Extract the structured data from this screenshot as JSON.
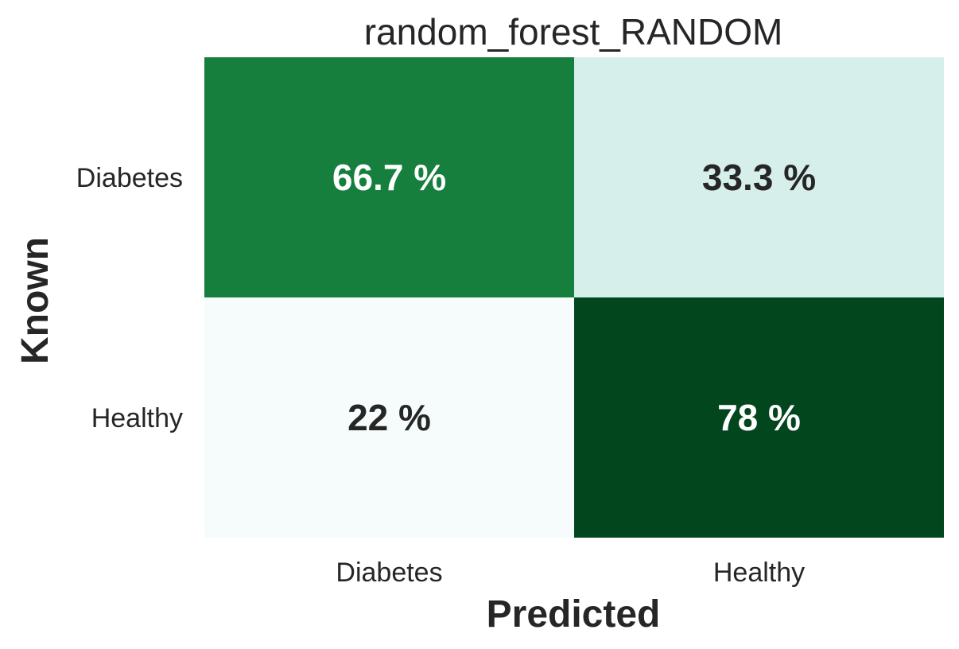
{
  "chart_data": {
    "type": "heatmap",
    "title": "random_forest_RANDOM",
    "xlabel": "Predicted",
    "ylabel": "Known",
    "x_categories": [
      "Diabetes",
      "Healthy"
    ],
    "y_categories": [
      "Diabetes",
      "Healthy"
    ],
    "values": [
      [
        66.7,
        33.3
      ],
      [
        22,
        78
      ]
    ],
    "cell_labels": [
      [
        "66.7 %",
        "33.3 %"
      ],
      [
        "22 %",
        "78 %"
      ]
    ],
    "cell_colors": [
      [
        "#177f3e",
        "#d6efeb"
      ],
      [
        "#f6fcfb",
        "#02461e"
      ]
    ],
    "cell_text_colors": [
      [
        "#ffffff",
        "#262626"
      ],
      [
        "#262626",
        "#ffffff"
      ]
    ],
    "colormap": "greens",
    "grid": false,
    "colorbar": false
  }
}
